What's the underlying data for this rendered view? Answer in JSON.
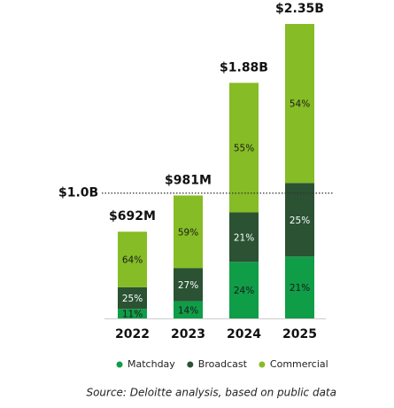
{
  "chart_data": {
    "type": "bar",
    "stacked": true,
    "categories": [
      "2022",
      "2023",
      "2024",
      "2025"
    ],
    "totals": {
      "values": [
        692,
        981,
        1880,
        2350
      ],
      "value_labels": [
        "$692M",
        "$981M",
        "$1.88B",
        "$2.35B"
      ]
    },
    "series": [
      {
        "name": "Matchday",
        "color": "#0f9d48",
        "values": [
          11,
          14,
          24,
          21
        ],
        "value_labels": [
          "11%",
          "14%",
          "24%",
          "21%"
        ]
      },
      {
        "name": "Broadcast",
        "color": "#2a5233",
        "values": [
          25,
          27,
          21,
          25
        ],
        "value_labels": [
          "25%",
          "27%",
          "21%",
          "25%"
        ]
      },
      {
        "name": "Commercial",
        "color": "#86bc25",
        "values": [
          64,
          59,
          55,
          54
        ],
        "value_labels": [
          "64%",
          "59%",
          "55%",
          "54%"
        ]
      }
    ],
    "ylim": [
      0,
      2350
    ],
    "reference": {
      "value": 1000,
      "label": "$1.0B"
    },
    "source": "Source: Deloitte analysis, based on public data"
  }
}
